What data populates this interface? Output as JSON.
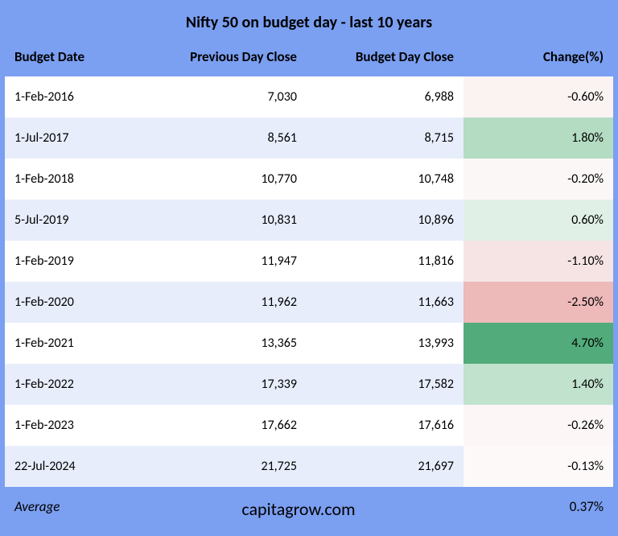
{
  "title": "Nifty 50 on budget day - last 10 years",
  "columns": {
    "date": "Budget Date",
    "prev": "Previous Day Close",
    "close": "Budget Day Close",
    "change": "Change(%)"
  },
  "rows": [
    {
      "date": "1-Feb-2016",
      "prev": "7,030",
      "close": "6,988",
      "change": "-0.60%",
      "shade": "#fbf2f2"
    },
    {
      "date": "1-Jul-2017",
      "prev": "8,561",
      "close": "8,715",
      "change": "1.80%",
      "shade": "#b3dcc3"
    },
    {
      "date": "1-Feb-2018",
      "prev": "10,770",
      "close": "10,748",
      "change": "-0.20%",
      "shade": "#fcf7f7"
    },
    {
      "date": "5-Jul-2019",
      "prev": "10,831",
      "close": "10,896",
      "change": "0.60%",
      "shade": "#e0f0e6"
    },
    {
      "date": "1-Feb-2019",
      "prev": "11,947",
      "close": "11,816",
      "change": "-1.10%",
      "shade": "#f6e4e4"
    },
    {
      "date": "1-Feb-2020",
      "prev": "11,962",
      "close": "11,663",
      "change": "-2.50%",
      "shade": "#edb9b9"
    },
    {
      "date": "1-Feb-2021",
      "prev": "13,365",
      "close": "13,993",
      "change": "4.70%",
      "shade": "#52ab7a"
    },
    {
      "date": "1-Feb-2022",
      "prev": "17,339",
      "close": "17,582",
      "change": "1.40%",
      "shade": "#c1e2cd"
    },
    {
      "date": "1-Feb-2023",
      "prev": "17,662",
      "close": "17,616",
      "change": "-0.26%",
      "shade": "#fcf6f6"
    },
    {
      "date": "22-Jul-2024",
      "prev": "21,725",
      "close": "21,697",
      "change": "-0.13%",
      "shade": "#fdf9f9"
    }
  ],
  "footer": {
    "label": "Average",
    "brand": "capitagrow.com",
    "value": "0.37%"
  },
  "colors": {
    "frame": "#7b9ff1",
    "row_even": "#e7edfb",
    "row_odd": "#ffffff",
    "text": "#000000"
  }
}
